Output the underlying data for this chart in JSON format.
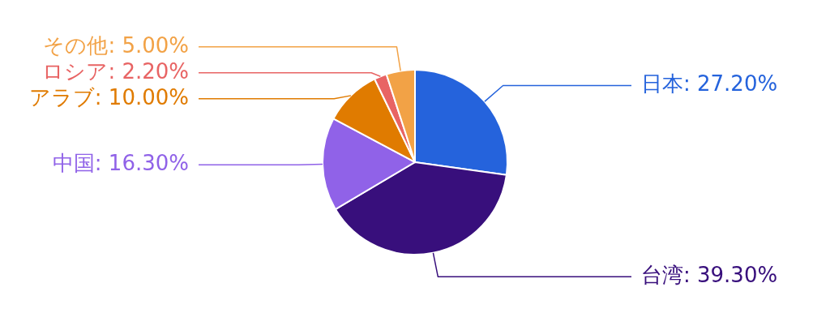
{
  "chart_data": {
    "type": "pie",
    "categories": [
      "日本",
      "台湾",
      "中国",
      "アラブ",
      "ロシア",
      "その他"
    ],
    "values": [
      27.2,
      39.3,
      16.3,
      10.0,
      2.2,
      5.0
    ],
    "colors": [
      "#2563dc",
      "#380f7c",
      "#9062e8",
      "#e07b00",
      "#e86464",
      "#f2a246"
    ],
    "value_labels": [
      "27.20%",
      "39.30%",
      "16.30%",
      "10.00%",
      "2.20%",
      "5.00%"
    ],
    "legend": false
  }
}
